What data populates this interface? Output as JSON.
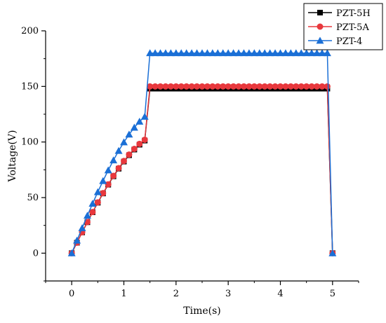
{
  "chart_data": {
    "type": "line",
    "xlabel": "Time(s)",
    "ylabel": "Voltage(V)",
    "xlim": [
      -0.5,
      5.5
    ],
    "ylim": [
      -25,
      200
    ],
    "xticks": [
      0,
      1,
      2,
      3,
      4,
      5
    ],
    "yticks": [
      0,
      50,
      100,
      150,
      200
    ],
    "grid": false,
    "legend_position": "top-right outside",
    "series": [
      {
        "name": "PZT-5H",
        "color": "#000000",
        "marker": "square",
        "x": [
          0.0,
          0.1,
          0.2,
          0.3,
          0.4,
          0.5,
          0.6,
          0.7,
          0.8,
          0.9,
          1.0,
          1.1,
          1.2,
          1.3,
          1.4,
          1.5,
          1.6,
          1.7,
          1.8,
          1.9,
          2.0,
          2.1,
          2.2,
          2.3,
          2.4,
          2.5,
          2.6,
          2.7,
          2.8,
          2.9,
          3.0,
          3.1,
          3.2,
          3.3,
          3.4,
          3.5,
          3.6,
          3.7,
          3.8,
          3.9,
          4.0,
          4.1,
          4.2,
          4.3,
          4.4,
          4.5,
          4.6,
          4.7,
          4.8,
          4.9,
          5.0
        ],
        "y": [
          0.0,
          9.4,
          18.7,
          27.8,
          36.8,
          45.4,
          53.7,
          61.6,
          69.1,
          76.0,
          82.4,
          88.1,
          93.2,
          97.6,
          101.3,
          148.0,
          148.0,
          148.0,
          148.0,
          148.0,
          148.0,
          148.0,
          148.0,
          148.0,
          148.0,
          148.0,
          148.0,
          148.0,
          148.0,
          148.0,
          148.0,
          148.0,
          148.0,
          148.0,
          148.0,
          148.0,
          148.0,
          148.0,
          148.0,
          148.0,
          148.0,
          148.0,
          148.0,
          148.0,
          148.0,
          148.0,
          148.0,
          148.0,
          148.0,
          148.0,
          0.0
        ]
      },
      {
        "name": "PZT-5A",
        "color": "#e8383d",
        "marker": "circle",
        "x": [
          0.0,
          0.1,
          0.2,
          0.3,
          0.4,
          0.5,
          0.6,
          0.7,
          0.8,
          0.9,
          1.0,
          1.1,
          1.2,
          1.3,
          1.4,
          1.5,
          1.6,
          1.7,
          1.8,
          1.9,
          2.0,
          2.1,
          2.2,
          2.3,
          2.4,
          2.5,
          2.6,
          2.7,
          2.8,
          2.9,
          3.0,
          3.1,
          3.2,
          3.3,
          3.4,
          3.5,
          3.6,
          3.7,
          3.8,
          3.9,
          4.0,
          4.1,
          4.2,
          4.3,
          4.4,
          4.5,
          4.6,
          4.7,
          4.8,
          4.9,
          5.0
        ],
        "y": [
          0.0,
          9.4,
          18.8,
          28.0,
          37.0,
          45.7,
          54.0,
          61.9,
          69.5,
          76.5,
          82.9,
          88.7,
          93.8,
          98.3,
          102.0,
          150.0,
          150.0,
          150.0,
          150.0,
          150.0,
          150.0,
          150.0,
          150.0,
          150.0,
          150.0,
          150.0,
          150.0,
          150.0,
          150.0,
          150.0,
          150.0,
          150.0,
          150.0,
          150.0,
          150.0,
          150.0,
          150.0,
          150.0,
          150.0,
          150.0,
          150.0,
          150.0,
          150.0,
          150.0,
          150.0,
          150.0,
          150.0,
          150.0,
          150.0,
          150.0,
          0.0
        ]
      },
      {
        "name": "PZT-4",
        "color": "#1a6fd6",
        "marker": "triangle",
        "x": [
          0.0,
          0.1,
          0.2,
          0.3,
          0.4,
          0.5,
          0.6,
          0.7,
          0.8,
          0.9,
          1.0,
          1.1,
          1.2,
          1.3,
          1.4,
          1.5,
          1.6,
          1.7,
          1.8,
          1.9,
          2.0,
          2.1,
          2.2,
          2.3,
          2.4,
          2.5,
          2.6,
          2.7,
          2.8,
          2.9,
          3.0,
          3.1,
          3.2,
          3.3,
          3.4,
          3.5,
          3.6,
          3.7,
          3.8,
          3.9,
          4.0,
          4.1,
          4.2,
          4.3,
          4.4,
          4.5,
          4.6,
          4.7,
          4.8,
          4.9,
          5.0
        ],
        "y": [
          0.0,
          11.4,
          22.6,
          33.8,
          44.6,
          55.0,
          65.0,
          74.6,
          83.6,
          92.1,
          99.8,
          106.8,
          113.0,
          118.4,
          122.8,
          180.0,
          180.0,
          180.0,
          180.0,
          180.0,
          180.0,
          180.0,
          180.0,
          180.0,
          180.0,
          180.0,
          180.0,
          180.0,
          180.0,
          180.0,
          180.0,
          180.0,
          180.0,
          180.0,
          180.0,
          180.0,
          180.0,
          180.0,
          180.0,
          180.0,
          180.0,
          180.0,
          180.0,
          180.0,
          180.0,
          180.0,
          180.0,
          180.0,
          180.0,
          180.0,
          0.0
        ]
      }
    ]
  }
}
